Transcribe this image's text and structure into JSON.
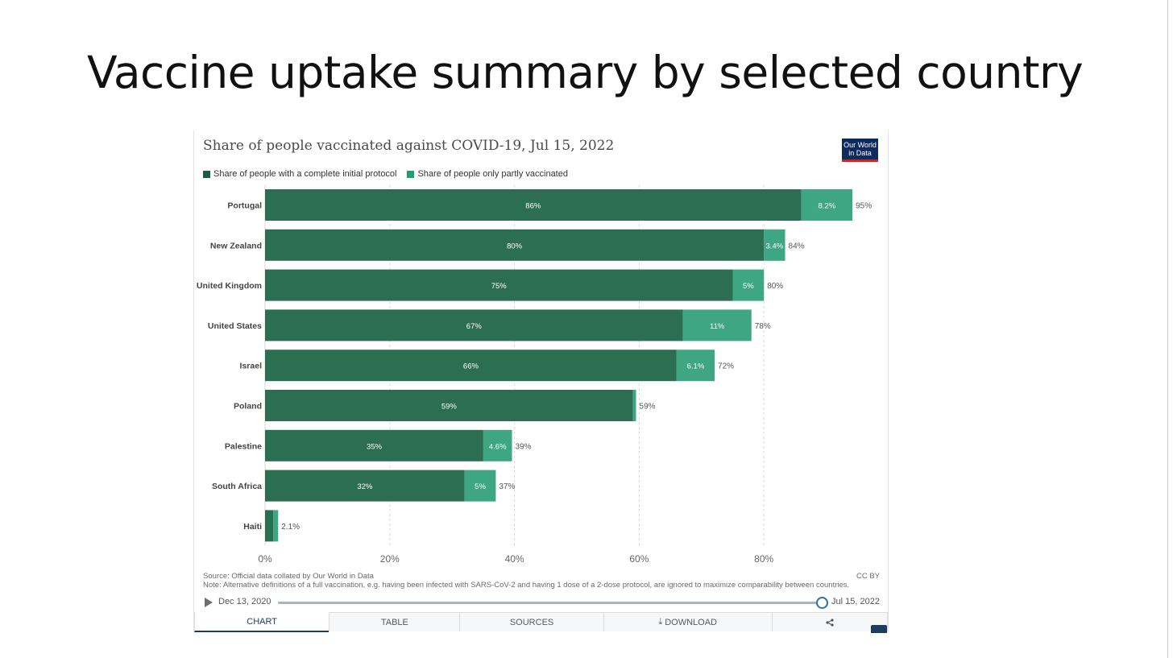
{
  "slide": {
    "title": "Vaccine uptake summary by selected country"
  },
  "embed": {
    "logo_line1": "Our World",
    "logo_line2": "in Data",
    "source": "Source: Official data collated by Our World in Data",
    "note": "Note: Alternative definitions of a full vaccination, e.g. having been infected with SARS-CoV-2 and having 1 dose of a 2-dose protocol, are ignored to maximize comparability between countries.",
    "license": "CC BY",
    "timeline": {
      "start": "Dec 13, 2020",
      "end": "Jul 15, 2022"
    },
    "tabs": {
      "chart": "CHART",
      "table": "TABLE",
      "sources": "SOURCES",
      "download": "DOWNLOAD",
      "download_icon": "download-icon",
      "share_icon": "share-icon"
    }
  },
  "colors": {
    "complete": "#2c6e52",
    "partial": "#3fa684",
    "legend_complete": "#1c5c44",
    "legend_partial": "#1f9e77",
    "grid": "#d7d7d7",
    "axis_text": "#666666"
  },
  "chart_data": {
    "type": "bar",
    "orientation": "horizontal",
    "stacked": true,
    "title": "Share of people vaccinated against COVID-19, Jul 15, 2022",
    "categories": [
      "Portugal",
      "New Zealand",
      "United Kingdom",
      "United States",
      "Israel",
      "Poland",
      "Palestine",
      "South Africa",
      "Haiti"
    ],
    "series": [
      {
        "name": "Share of people with a complete initial protocol",
        "values": [
          86,
          80,
          75,
          67,
          66,
          59,
          35,
          32,
          1.3
        ],
        "labels": [
          "86%",
          "80%",
          "75%",
          "67%",
          "66%",
          "59%",
          "35%",
          "32%",
          ""
        ]
      },
      {
        "name": "Share of people only partly vaccinated",
        "values": [
          8.2,
          3.4,
          5,
          11,
          6.1,
          0.5,
          4.6,
          5,
          0.8
        ],
        "labels": [
          "8.2%",
          "3.4%",
          "5%",
          "11%",
          "6.1%",
          "",
          "4.6%",
          "5%",
          ""
        ]
      }
    ],
    "totals": [
      "95%",
      "84%",
      "80%",
      "78%",
      "72%",
      "59%",
      "39%",
      "37%",
      "2.1%"
    ],
    "xlim": [
      0,
      100
    ],
    "xticks": [
      0,
      20,
      40,
      60,
      80
    ],
    "xtick_labels": [
      "0%",
      "20%",
      "40%",
      "60%",
      "80%"
    ],
    "grid": true,
    "legend_position": "top-left"
  }
}
